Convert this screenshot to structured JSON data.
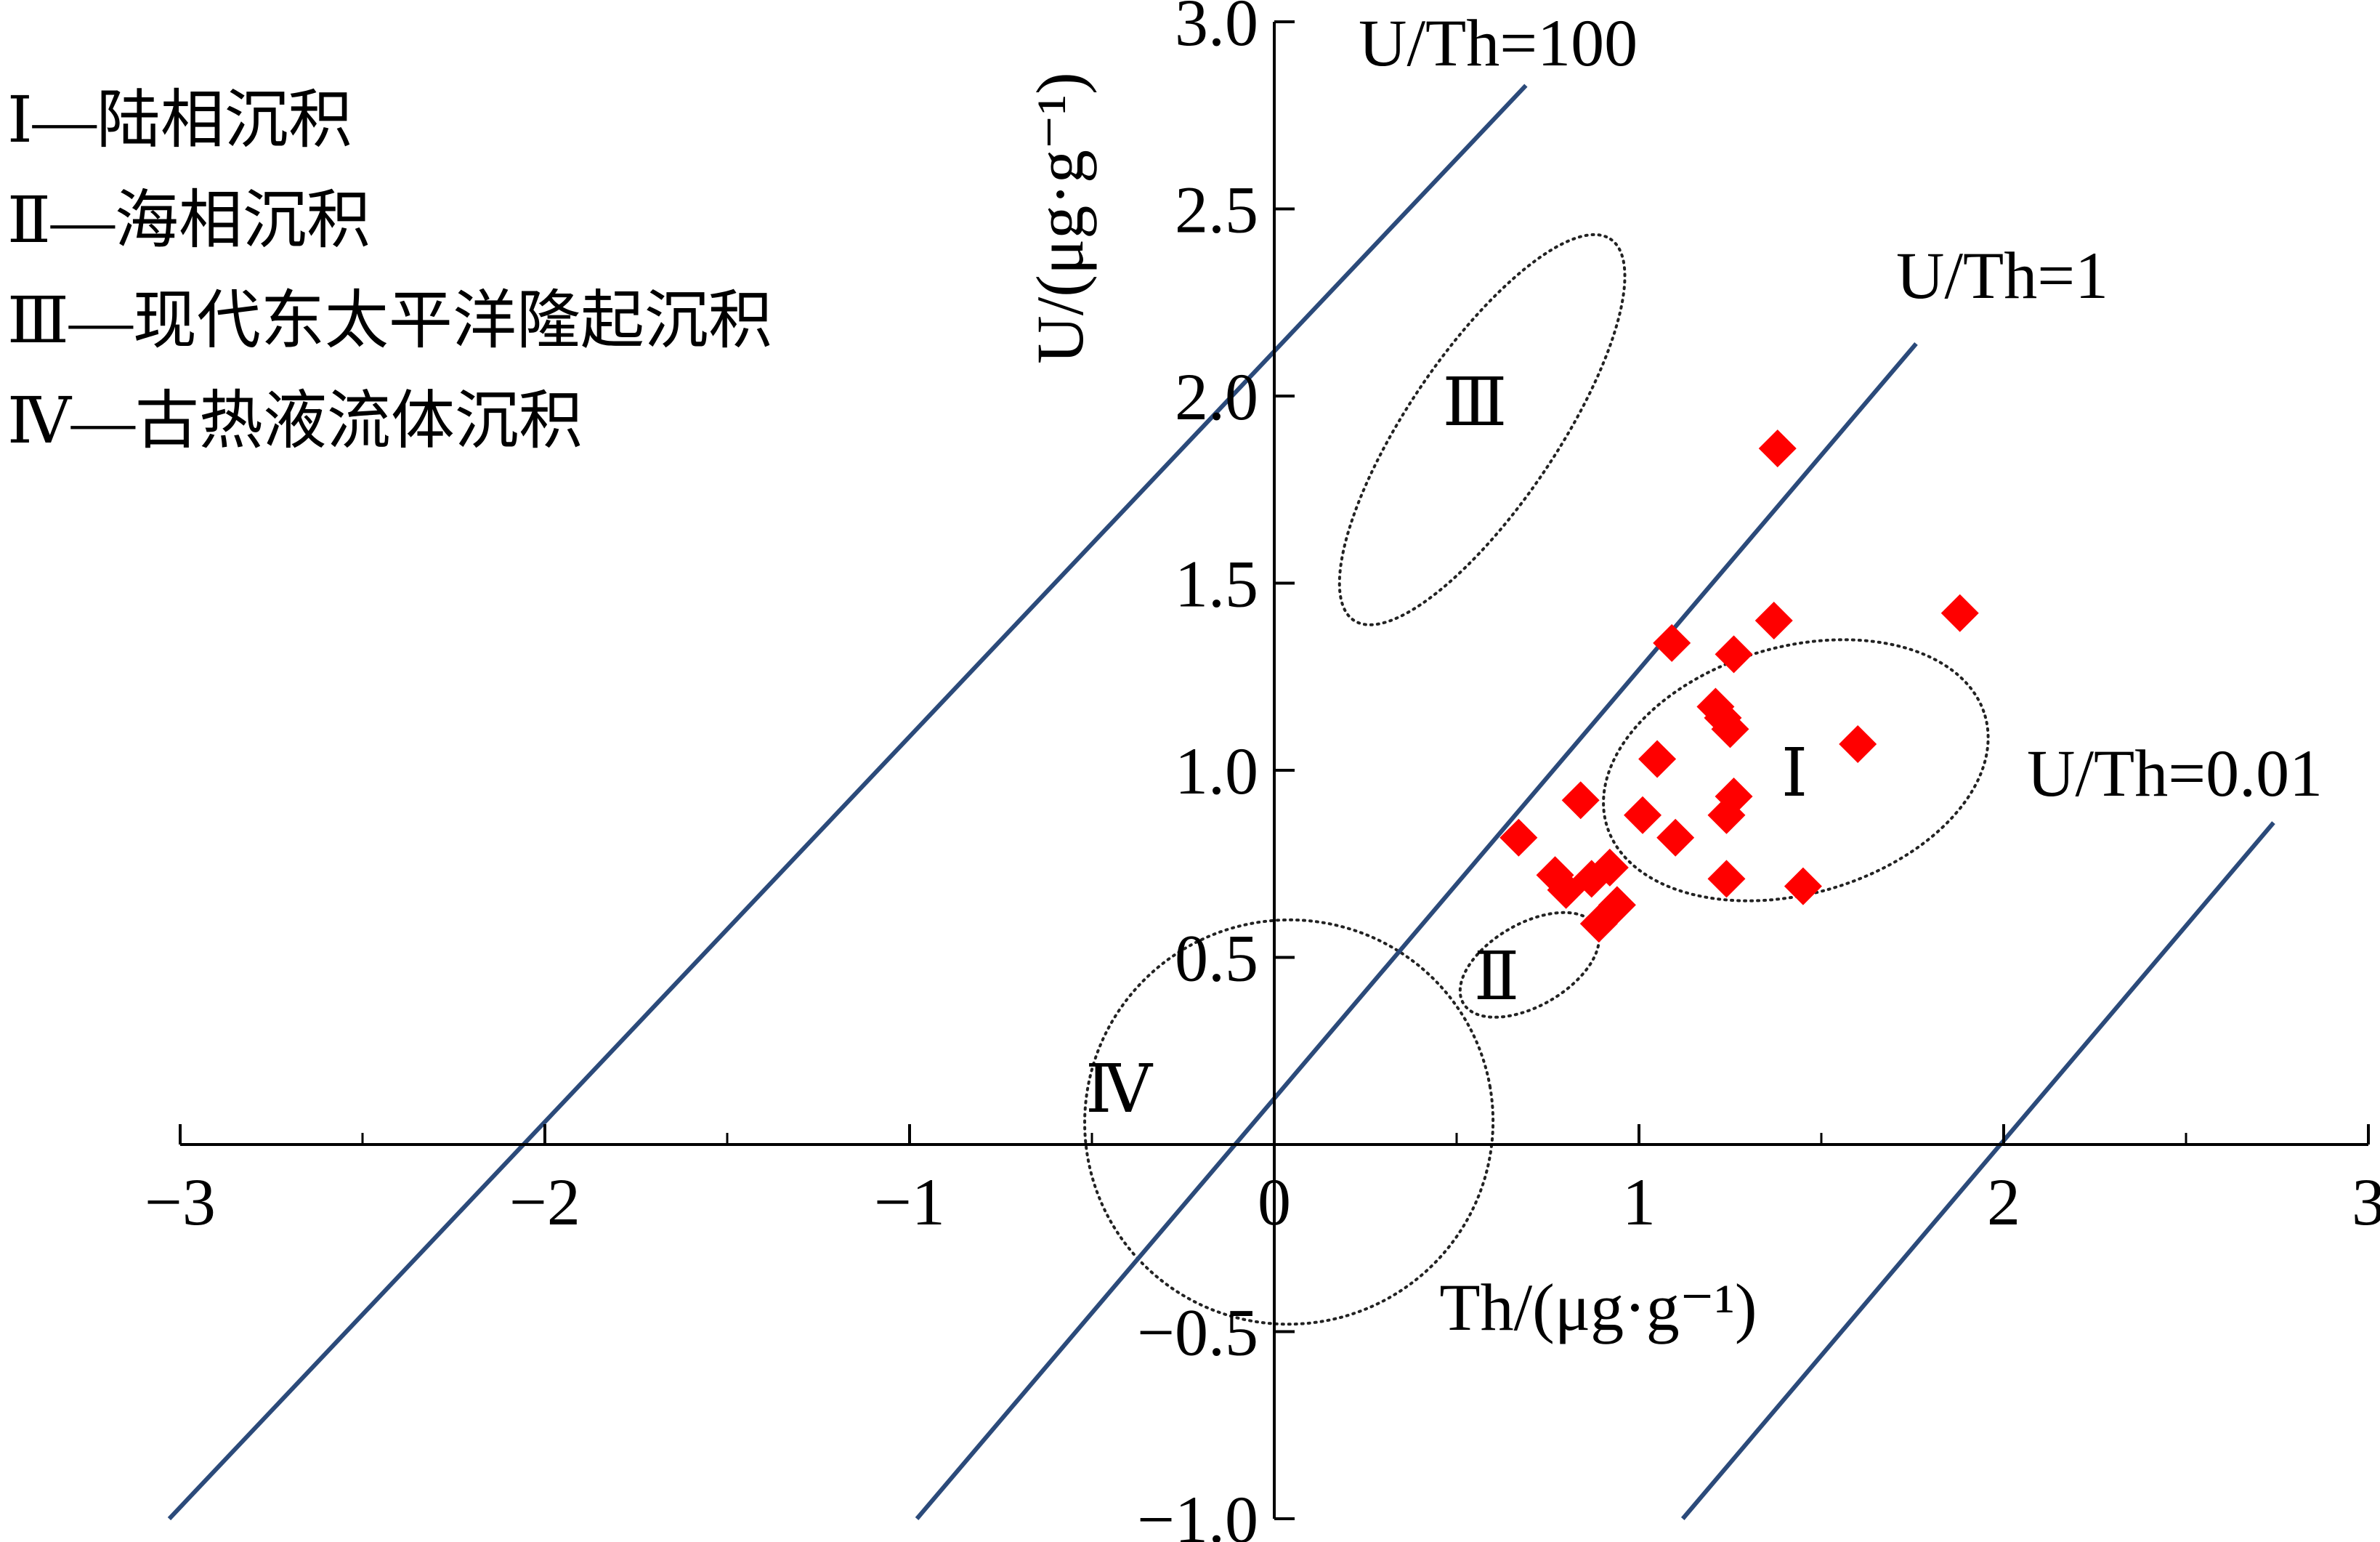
{
  "chart_data": {
    "type": "scatter",
    "title": "",
    "xlabel": "Th/(μg·g⁻¹)",
    "ylabel": "U/(μg·g⁻¹)",
    "xlim": [
      -3,
      3
    ],
    "ylim": [
      -1.0,
      3.0
    ],
    "x_ticks": [
      "−3",
      "−2",
      "−1",
      "0",
      "1",
      "2",
      "3"
    ],
    "y_ticks": [
      "−1.0",
      "−0.5",
      "0.5",
      "1.0",
      "1.5",
      "2.0",
      "2.5",
      "3.0"
    ],
    "grid": false,
    "legend": [
      {
        "text": "Ⅰ—陆相沉积"
      },
      {
        "text": "Ⅱ—海相沉积"
      },
      {
        "text": "Ⅲ—现代东太平洋隆起沉积"
      },
      {
        "text": "Ⅳ—古热液流体沉积"
      }
    ],
    "legend_position": "top-left",
    "reference_lines": [
      {
        "label": "U/Th=100",
        "x": [
          -3.03,
          0.69
        ],
        "y": [
          -1.0,
          2.83
        ]
      },
      {
        "label": "U/Th=1",
        "x": [
          -0.98,
          1.76
        ],
        "y": [
          -1.0,
          2.14
        ]
      },
      {
        "label": "U/Th=0.01",
        "x": [
          1.12,
          2.74
        ],
        "y": [
          -1.0,
          0.86
        ]
      }
    ],
    "line_color": "#2b4a7a",
    "regions": [
      {
        "label": "Ⅰ",
        "cx": 1.43,
        "cy": 1.0,
        "rx": 0.54,
        "ry": 0.33,
        "rotation_deg": -16
      },
      {
        "label": "Ⅱ",
        "cx": 0.7,
        "cy": 0.48,
        "rx": 0.21,
        "ry": 0.11,
        "rotation_deg": -30
      },
      {
        "label": "Ⅲ",
        "cx": 0.57,
        "cy": 1.91,
        "rx": 0.63,
        "ry": 0.2,
        "rotation_deg": -56
      },
      {
        "label": "Ⅳ",
        "cx": 0.04,
        "cy": 0.06,
        "rx": 0.56,
        "ry": 0.54,
        "rotation_deg": -10
      }
    ],
    "series": [
      {
        "marker": "diamond",
        "color": "#ff0000",
        "points": [
          [
            1.38,
            1.86
          ],
          [
            1.88,
            1.42
          ],
          [
            1.37,
            1.4
          ],
          [
            1.09,
            1.34
          ],
          [
            1.26,
            1.31
          ],
          [
            1.21,
            1.17
          ],
          [
            1.23,
            1.14
          ],
          [
            1.25,
            1.11
          ],
          [
            1.6,
            1.07
          ],
          [
            1.05,
            1.03
          ],
          [
            0.84,
            0.92
          ],
          [
            1.26,
            0.93
          ],
          [
            1.01,
            0.88
          ],
          [
            1.24,
            0.88
          ],
          [
            0.67,
            0.82
          ],
          [
            1.1,
            0.82
          ],
          [
            0.77,
            0.72
          ],
          [
            0.92,
            0.74
          ],
          [
            0.87,
            0.71
          ],
          [
            1.24,
            0.71
          ],
          [
            1.45,
            0.69
          ],
          [
            0.8,
            0.68
          ],
          [
            0.94,
            0.64
          ],
          [
            0.89,
            0.59
          ]
        ]
      }
    ]
  }
}
